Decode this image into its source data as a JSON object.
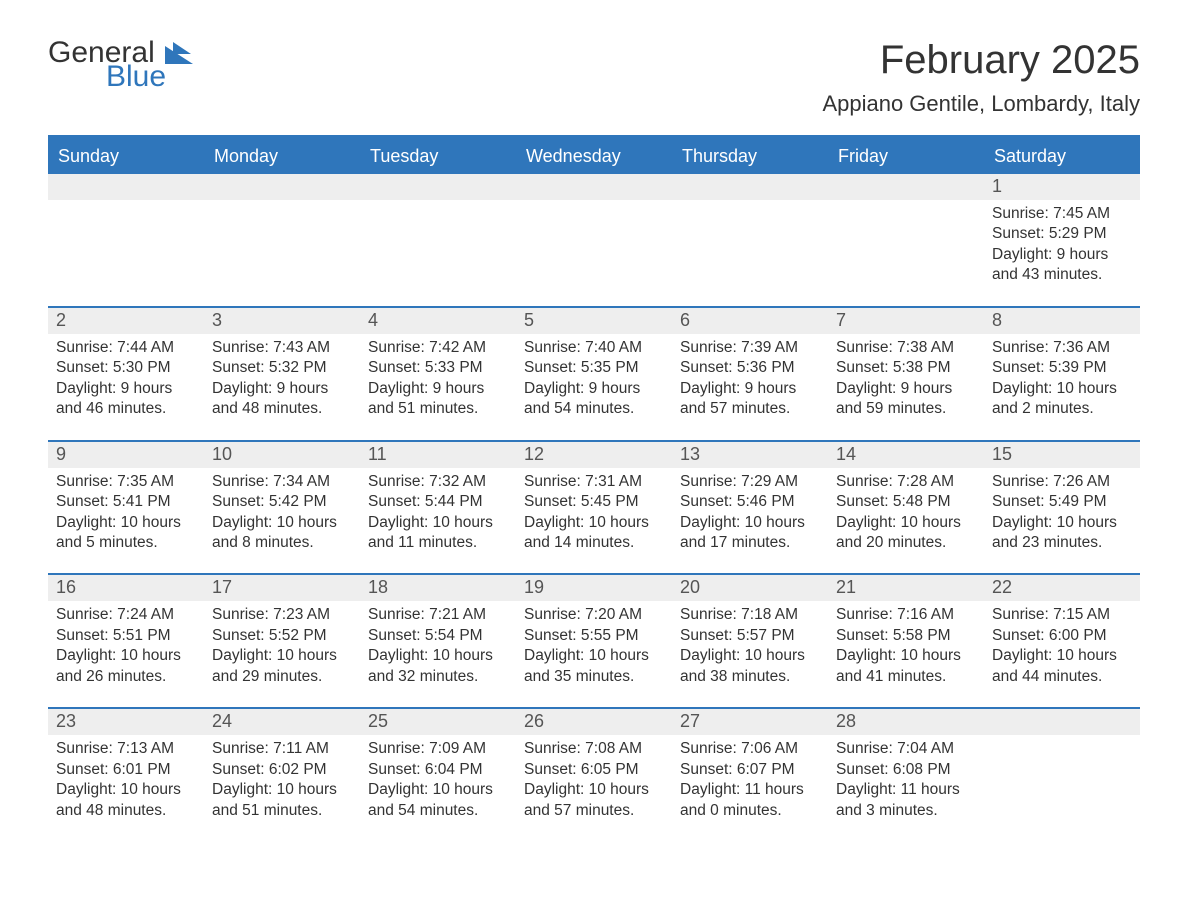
{
  "brand": {
    "text1": "General",
    "text2": "Blue",
    "accent_color": "#2f76bb"
  },
  "title": "February 2025",
  "location": "Appiano Gentile, Lombardy, Italy",
  "colors": {
    "header_bg": "#2f76bb",
    "header_text": "#ffffff",
    "daynum_bg": "#eeeeee",
    "text": "#333333",
    "page_bg": "#ffffff"
  },
  "typography": {
    "title_fontsize": 40,
    "location_fontsize": 22,
    "dow_fontsize": 18,
    "body_fontsize": 15.5,
    "font_family": "Arial"
  },
  "layout": {
    "columns": 7,
    "leading_blanks": 6,
    "days_in_month": 28
  },
  "day_labels": [
    "Sunday",
    "Monday",
    "Tuesday",
    "Wednesday",
    "Thursday",
    "Friday",
    "Saturday"
  ],
  "days": [
    {
      "n": 1,
      "sunrise": "7:45 AM",
      "sunset": "5:29 PM",
      "daylight": "9 hours and 43 minutes."
    },
    {
      "n": 2,
      "sunrise": "7:44 AM",
      "sunset": "5:30 PM",
      "daylight": "9 hours and 46 minutes."
    },
    {
      "n": 3,
      "sunrise": "7:43 AM",
      "sunset": "5:32 PM",
      "daylight": "9 hours and 48 minutes."
    },
    {
      "n": 4,
      "sunrise": "7:42 AM",
      "sunset": "5:33 PM",
      "daylight": "9 hours and 51 minutes."
    },
    {
      "n": 5,
      "sunrise": "7:40 AM",
      "sunset": "5:35 PM",
      "daylight": "9 hours and 54 minutes."
    },
    {
      "n": 6,
      "sunrise": "7:39 AM",
      "sunset": "5:36 PM",
      "daylight": "9 hours and 57 minutes."
    },
    {
      "n": 7,
      "sunrise": "7:38 AM",
      "sunset": "5:38 PM",
      "daylight": "9 hours and 59 minutes."
    },
    {
      "n": 8,
      "sunrise": "7:36 AM",
      "sunset": "5:39 PM",
      "daylight": "10 hours and 2 minutes."
    },
    {
      "n": 9,
      "sunrise": "7:35 AM",
      "sunset": "5:41 PM",
      "daylight": "10 hours and 5 minutes."
    },
    {
      "n": 10,
      "sunrise": "7:34 AM",
      "sunset": "5:42 PM",
      "daylight": "10 hours and 8 minutes."
    },
    {
      "n": 11,
      "sunrise": "7:32 AM",
      "sunset": "5:44 PM",
      "daylight": "10 hours and 11 minutes."
    },
    {
      "n": 12,
      "sunrise": "7:31 AM",
      "sunset": "5:45 PM",
      "daylight": "10 hours and 14 minutes."
    },
    {
      "n": 13,
      "sunrise": "7:29 AM",
      "sunset": "5:46 PM",
      "daylight": "10 hours and 17 minutes."
    },
    {
      "n": 14,
      "sunrise": "7:28 AM",
      "sunset": "5:48 PM",
      "daylight": "10 hours and 20 minutes."
    },
    {
      "n": 15,
      "sunrise": "7:26 AM",
      "sunset": "5:49 PM",
      "daylight": "10 hours and 23 minutes."
    },
    {
      "n": 16,
      "sunrise": "7:24 AM",
      "sunset": "5:51 PM",
      "daylight": "10 hours and 26 minutes."
    },
    {
      "n": 17,
      "sunrise": "7:23 AM",
      "sunset": "5:52 PM",
      "daylight": "10 hours and 29 minutes."
    },
    {
      "n": 18,
      "sunrise": "7:21 AM",
      "sunset": "5:54 PM",
      "daylight": "10 hours and 32 minutes."
    },
    {
      "n": 19,
      "sunrise": "7:20 AM",
      "sunset": "5:55 PM",
      "daylight": "10 hours and 35 minutes."
    },
    {
      "n": 20,
      "sunrise": "7:18 AM",
      "sunset": "5:57 PM",
      "daylight": "10 hours and 38 minutes."
    },
    {
      "n": 21,
      "sunrise": "7:16 AM",
      "sunset": "5:58 PM",
      "daylight": "10 hours and 41 minutes."
    },
    {
      "n": 22,
      "sunrise": "7:15 AM",
      "sunset": "6:00 PM",
      "daylight": "10 hours and 44 minutes."
    },
    {
      "n": 23,
      "sunrise": "7:13 AM",
      "sunset": "6:01 PM",
      "daylight": "10 hours and 48 minutes."
    },
    {
      "n": 24,
      "sunrise": "7:11 AM",
      "sunset": "6:02 PM",
      "daylight": "10 hours and 51 minutes."
    },
    {
      "n": 25,
      "sunrise": "7:09 AM",
      "sunset": "6:04 PM",
      "daylight": "10 hours and 54 minutes."
    },
    {
      "n": 26,
      "sunrise": "7:08 AM",
      "sunset": "6:05 PM",
      "daylight": "10 hours and 57 minutes."
    },
    {
      "n": 27,
      "sunrise": "7:06 AM",
      "sunset": "6:07 PM",
      "daylight": "11 hours and 0 minutes."
    },
    {
      "n": 28,
      "sunrise": "7:04 AM",
      "sunset": "6:08 PM",
      "daylight": "11 hours and 3 minutes."
    }
  ],
  "labels": {
    "sunrise": "Sunrise:",
    "sunset": "Sunset:",
    "daylight": "Daylight:"
  }
}
